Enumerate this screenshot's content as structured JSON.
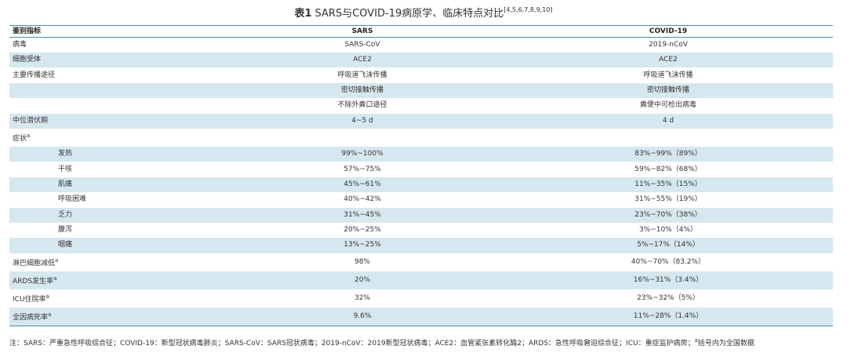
{
  "caption": {
    "label": "表1",
    "title": "SARS与COVID-19病原学、临床特点对比",
    "refs": "[4,5,6,7,8,9,10]"
  },
  "table": {
    "headers": [
      "鉴别指标",
      "SARS",
      "COVID-19"
    ],
    "rows": [
      {
        "key": "病毒",
        "sars": "SARS-CoV",
        "covid": "2019-nCoV"
      },
      {
        "key": "细胞受体",
        "sars": "ACE2",
        "covid": "ACE2"
      },
      {
        "key": "主要传播途径",
        "sars": "呼吸道飞沫传播",
        "covid": "呼吸道飞沫传播"
      },
      {
        "key": "",
        "sars": "密切接触传播",
        "covid": "密切接触传播"
      },
      {
        "key": "",
        "sars": "不除外粪口途径",
        "covid": "粪便中可检出病毒"
      },
      {
        "key": "中位潜伏期",
        "sars": "4~5 d",
        "covid": "4 d"
      },
      {
        "key": "症状",
        "sup": "a",
        "sars": "",
        "covid": ""
      },
      {
        "key": "发热",
        "sars": "99%~100%",
        "covid": "83%~99%（89%）"
      },
      {
        "key": "干咳",
        "sars": "57%~75%",
        "covid": "59%~82%（68%）"
      },
      {
        "key": "肌痛",
        "sars": "45%~61%",
        "covid": "11%~35%（15%）"
      },
      {
        "key": "呼吸困难",
        "sars": "40%~42%",
        "covid": "31%~55%（19%）"
      },
      {
        "key": "乏力",
        "sars": "31%~45%",
        "covid": "23%~70%（38%）"
      },
      {
        "key": "腹泻",
        "sars": "20%~25%",
        "covid": "3%~10%（4%）"
      },
      {
        "key": "咽痛",
        "sars": "13%~25%",
        "covid": "5%~17%（14%）"
      },
      {
        "key": "淋巴细胞减低",
        "sup": "a",
        "sars": "98%",
        "covid": "40%~70%（83.2%）"
      },
      {
        "key": "ARDS发生率",
        "sup": "a",
        "sars": "20%",
        "covid": "16%~31%（3.4%）"
      },
      {
        "key": "ICU住院率",
        "sup": "a",
        "sars": "32%",
        "covid": "23%~32%（5%）"
      },
      {
        "key": "全因病死率",
        "sup": "a",
        "sars": "9.6%",
        "covid": "11%~28%（1.4%）"
      }
    ]
  },
  "note": {
    "text": "注：SARS：严重急性呼吸综合征；COVID-19：新型冠状病毒肺炎；SARS-CoV：SARS冠状病毒；2019-nCoV：2019新型冠状病毒；ACE2：血管紧张素转化酶2；ARDS：急性呼吸窘迫综合征；ICU：重症监护病房；",
    "sup": "a",
    "tail": "括号内为全国数据"
  },
  "colors": {
    "row_shade": "#d6e8ef",
    "rule": "#4a8fa8"
  }
}
